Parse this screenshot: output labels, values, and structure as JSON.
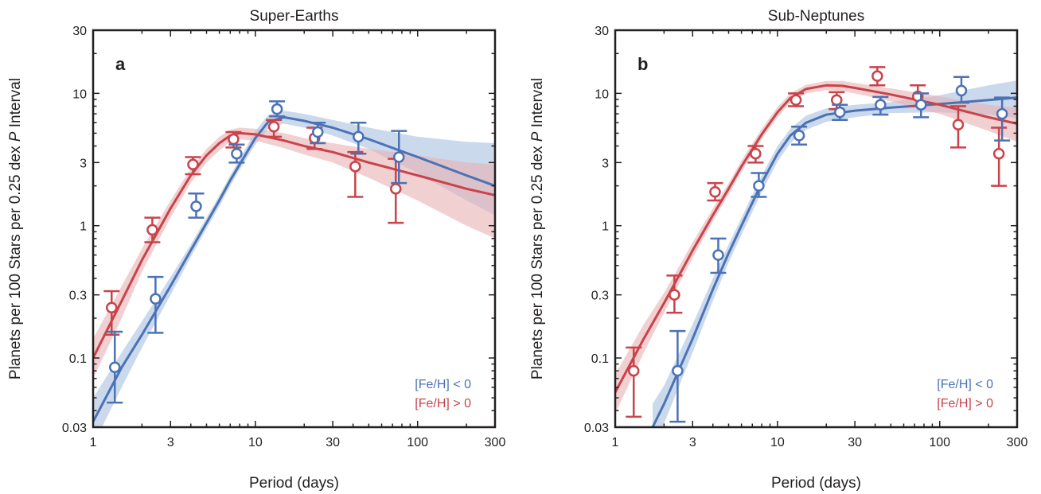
{
  "chart_data": [
    {
      "type": "line",
      "panel_label": "a",
      "title": "Super-Earths",
      "xlabel": "Period (days)",
      "ylabel_prefix": "Planets per 100 Stars per 0.25 dex ",
      "ylabel_italic": "P",
      "ylabel_suffix": " Interval",
      "x_scale": "log",
      "y_scale": "log",
      "xlim": [
        1,
        300
      ],
      "ylim": [
        0.03,
        30
      ],
      "xticks": [
        1,
        3,
        10,
        30,
        100,
        300
      ],
      "xtick_labels": [
        "1",
        "3",
        "10",
        "30",
        "100",
        "300"
      ],
      "yticks": [
        0.03,
        0.1,
        0.3,
        1,
        3,
        10,
        30
      ],
      "ytick_labels": [
        "0.03",
        "0.1",
        "0.3",
        "1",
        "3",
        "10",
        "30"
      ],
      "legend_position": "bottom-right",
      "series": [
        {
          "name": "[Fe/H] < 0",
          "color": "#4a72b5",
          "band_color": "#a9bfe0",
          "points": [
            {
              "x": 1.33,
              "y": 0.085,
              "lo": 0.046,
              "hi": 0.158
            },
            {
              "x": 2.37,
              "y": 0.28,
              "lo": 0.155,
              "hi": 0.41
            },
            {
              "x": 4.22,
              "y": 1.4,
              "lo": 1.15,
              "hi": 1.75
            },
            {
              "x": 7.5,
              "y": 3.5,
              "lo": 3.0,
              "hi": 4.1
            },
            {
              "x": 13.3,
              "y": 7.6,
              "lo": 6.7,
              "hi": 8.7
            },
            {
              "x": 23.7,
              "y": 5.1,
              "lo": 4.2,
              "hi": 6.0
            },
            {
              "x": 42.2,
              "y": 4.7,
              "lo": 3.5,
              "hi": 6.0
            },
            {
              "x": 75,
              "y": 3.3,
              "lo": 2.1,
              "hi": 5.2
            }
          ],
          "fit": {
            "x": [
              1,
              1.5,
              2,
              3,
              4,
              5,
              6,
              7,
              8,
              10,
              12,
              15,
              20,
              30,
              50,
              100,
              200,
              300
            ],
            "y": [
              0.033,
              0.085,
              0.15,
              0.35,
              0.65,
              1.05,
              1.55,
              2.2,
              2.9,
              4.6,
              6.1,
              6.6,
              6.2,
              5.5,
              4.5,
              3.3,
              2.4,
              2.0
            ],
            "lo": [
              0.022,
              0.06,
              0.12,
              0.3,
              0.58,
              0.95,
              1.4,
              2.0,
              2.65,
              4.1,
              5.4,
              5.9,
              5.5,
              4.8,
              3.8,
              2.5,
              1.55,
              1.2
            ],
            "hi": [
              0.05,
              0.11,
              0.19,
              0.41,
              0.72,
              1.15,
              1.7,
              2.4,
              3.2,
              5.2,
              6.9,
              7.4,
              7.0,
              6.3,
              5.5,
              4.7,
              4.3,
              4.2
            ]
          }
        },
        {
          "name": "[Fe/H] > 0",
          "color": "#c9434a",
          "band_color": "#e8b1b4",
          "points": [
            {
              "x": 1.33,
              "y": 0.24,
              "lo": 0.15,
              "hi": 0.32
            },
            {
              "x": 2.37,
              "y": 0.93,
              "lo": 0.75,
              "hi": 1.15
            },
            {
              "x": 4.22,
              "y": 2.9,
              "lo": 2.45,
              "hi": 3.3
            },
            {
              "x": 7.5,
              "y": 4.5,
              "lo": 3.9,
              "hi": 5.1
            },
            {
              "x": 13.3,
              "y": 5.6,
              "lo": 4.7,
              "hi": 6.3
            },
            {
              "x": 23.7,
              "y": 4.6,
              "lo": 3.8,
              "hi": 5.5
            },
            {
              "x": 42.2,
              "y": 2.8,
              "lo": 1.65,
              "hi": 3.6
            },
            {
              "x": 75,
              "y": 1.9,
              "lo": 1.05,
              "hi": 3.2
            }
          ],
          "fit": {
            "x": [
              1,
              1.5,
              2,
              3,
              4,
              5,
              6,
              7,
              8,
              10,
              15,
              20,
              30,
              50,
              100,
              200,
              300
            ],
            "y": [
              0.1,
              0.27,
              0.55,
              1.35,
              2.4,
              3.4,
              4.2,
              4.8,
              5.0,
              4.9,
              4.4,
              4.0,
              3.6,
              3.0,
              2.4,
              1.9,
              1.7
            ],
            "lo": [
              0.07,
              0.2,
              0.45,
              1.15,
              2.1,
              3.0,
              3.7,
              4.3,
              4.5,
              4.4,
              3.85,
              3.45,
              3.0,
              2.3,
              1.55,
              1.0,
              0.8
            ],
            "hi": [
              0.14,
              0.35,
              0.67,
              1.55,
              2.7,
              3.8,
              4.7,
              5.3,
              5.5,
              5.4,
              5.0,
              4.6,
              4.2,
              3.8,
              3.4,
              3.0,
              2.9
            ]
          }
        }
      ]
    },
    {
      "type": "line",
      "panel_label": "b",
      "title": "Sub-Neptunes",
      "xlabel": "Period (days)",
      "ylabel_prefix": "Planets per 100 Stars per 0.25 dex ",
      "ylabel_italic": "P",
      "ylabel_suffix": " Interval",
      "x_scale": "log",
      "y_scale": "log",
      "xlim": [
        1,
        300
      ],
      "ylim": [
        0.03,
        30
      ],
      "xticks": [
        1,
        3,
        10,
        30,
        100,
        300
      ],
      "xtick_labels": [
        "1",
        "3",
        "10",
        "30",
        "100",
        "300"
      ],
      "yticks": [
        0.03,
        0.1,
        0.3,
        1,
        3,
        10,
        30
      ],
      "ytick_labels": [
        "0.03",
        "0.1",
        "0.3",
        "1",
        "3",
        "10",
        "30"
      ],
      "legend_position": "bottom-right",
      "series": [
        {
          "name": "[Fe/H] < 0",
          "color": "#4a72b5",
          "band_color": "#a9bfe0",
          "points": [
            {
              "x": 2.37,
              "y": 0.08,
              "lo": 0.033,
              "hi": 0.16
            },
            {
              "x": 4.22,
              "y": 0.6,
              "lo": 0.44,
              "hi": 0.8
            },
            {
              "x": 7.5,
              "y": 2.0,
              "lo": 1.65,
              "hi": 2.5
            },
            {
              "x": 13.3,
              "y": 4.8,
              "lo": 4.1,
              "hi": 5.6
            },
            {
              "x": 23.7,
              "y": 7.2,
              "lo": 6.3,
              "hi": 8.2
            },
            {
              "x": 42.2,
              "y": 8.2,
              "lo": 6.9,
              "hi": 9.4
            },
            {
              "x": 75,
              "y": 8.2,
              "lo": 6.6,
              "hi": 10.0
            },
            {
              "x": 133,
              "y": 10.5,
              "lo": 8.5,
              "hi": 13.3
            },
            {
              "x": 237,
              "y": 7.0,
              "lo": 4.4,
              "hi": 9.3
            }
          ],
          "fit": {
            "x": [
              1.7,
              2,
              3,
              4,
              5,
              6,
              8,
              10,
              12,
              15,
              20,
              30,
              50,
              100,
              200,
              300
            ],
            "y": [
              0.03,
              0.045,
              0.14,
              0.33,
              0.62,
              1.0,
              2.1,
              3.5,
              4.8,
              6.0,
              6.9,
              7.4,
              7.8,
              8.3,
              8.9,
              9.3
            ],
            "lo": [
              0.02,
              0.032,
              0.11,
              0.27,
              0.53,
              0.85,
              1.8,
              3.05,
              4.2,
              5.3,
              6.1,
              6.6,
              7.1,
              7.2,
              6.9,
              6.5
            ],
            "hi": [
              0.045,
              0.062,
              0.18,
              0.4,
              0.72,
              1.15,
              2.4,
              4.0,
              5.4,
              6.8,
              7.7,
              8.2,
              8.6,
              9.7,
              11.5,
              12.5
            ]
          }
        },
        {
          "name": "[Fe/H] > 0",
          "color": "#c9434a",
          "band_color": "#e8b1b4",
          "points": [
            {
              "x": 1.33,
              "y": 0.08,
              "lo": 0.036,
              "hi": 0.12
            },
            {
              "x": 2.37,
              "y": 0.3,
              "lo": 0.22,
              "hi": 0.42
            },
            {
              "x": 4.22,
              "y": 1.8,
              "lo": 1.55,
              "hi": 2.1
            },
            {
              "x": 7.5,
              "y": 3.5,
              "lo": 3.0,
              "hi": 4.0
            },
            {
              "x": 13.3,
              "y": 8.9,
              "lo": 8.0,
              "hi": 10.0
            },
            {
              "x": 23.7,
              "y": 8.9,
              "lo": 7.6,
              "hi": 10.2
            },
            {
              "x": 42.2,
              "y": 13.5,
              "lo": 11.5,
              "hi": 15.8
            },
            {
              "x": 75,
              "y": 9.5,
              "lo": 8.0,
              "hi": 11.5
            },
            {
              "x": 133,
              "y": 5.8,
              "lo": 3.9,
              "hi": 8.0
            },
            {
              "x": 237,
              "y": 3.5,
              "lo": 2.0,
              "hi": 5.5
            }
          ],
          "fit": {
            "x": [
              1,
              1.5,
              2,
              3,
              4,
              5,
              6,
              8,
              10,
              12,
              15,
              20,
              25,
              30,
              50,
              100,
              200,
              300
            ],
            "y": [
              0.055,
              0.14,
              0.26,
              0.65,
              1.2,
              1.9,
              2.8,
              4.9,
              7.2,
              9.2,
              10.8,
              11.5,
              11.4,
              11.0,
              9.8,
              8.2,
              6.6,
              5.9
            ],
            "lo": [
              0.038,
              0.11,
              0.22,
              0.57,
              1.08,
              1.72,
              2.55,
              4.5,
              6.6,
              8.5,
              10.0,
              10.6,
              10.4,
              10.0,
              8.7,
              7.0,
              5.2,
              4.3
            ],
            "hi": [
              0.075,
              0.18,
              0.31,
              0.75,
              1.35,
              2.1,
              3.1,
              5.4,
              7.9,
              10.0,
              11.6,
              12.4,
              12.4,
              12.0,
              10.9,
              9.5,
              8.2,
              7.8
            ]
          }
        }
      ]
    }
  ]
}
